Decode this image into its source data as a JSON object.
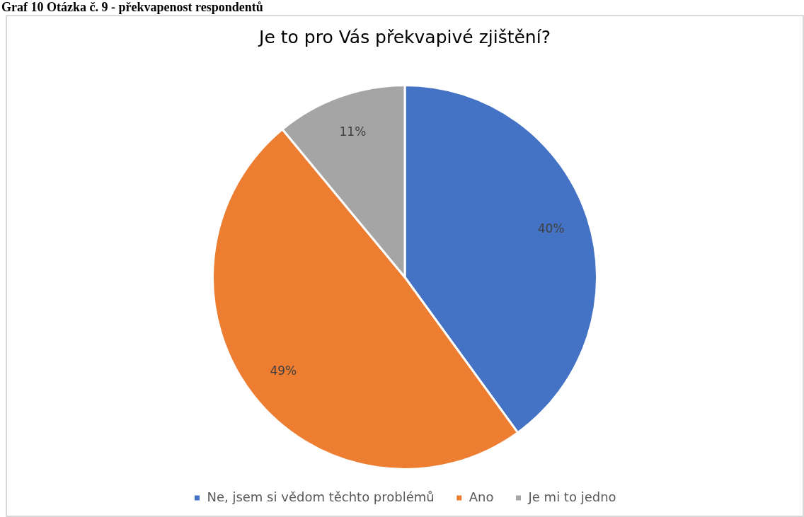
{
  "chart_data": {
    "type": "pie",
    "title": "Je to pro Vás překvapivé zjištění?",
    "annotations": [
      "Graf 10 Otázka č. 9 - překvapenost respondentů"
    ],
    "categories": [
      "Ne, jsem si vědom těchto problémů",
      "Ano",
      "Je mi to jedno"
    ],
    "values": [
      40,
      49,
      11
    ],
    "value_labels": [
      "40%",
      "49%",
      "11%"
    ],
    "colors": [
      "#4472c4",
      "#ed7d31",
      "#a5a5a5"
    ],
    "legend": "bottom"
  }
}
